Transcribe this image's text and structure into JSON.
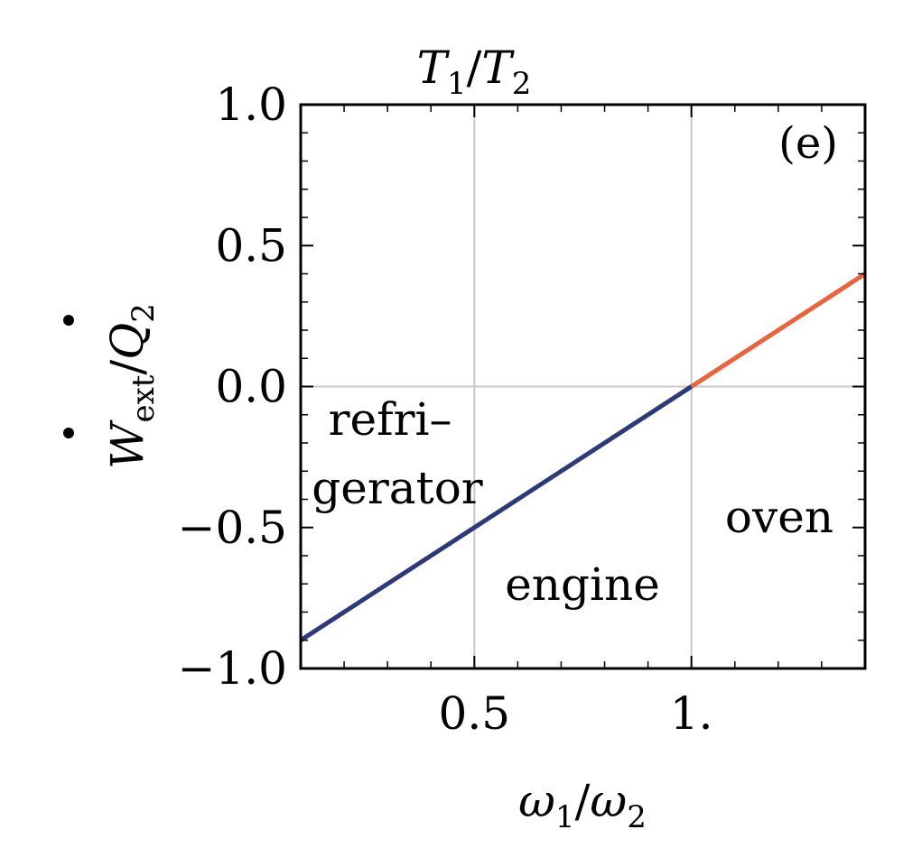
{
  "chart_data": {
    "type": "line",
    "panel_label": "(e)",
    "top_label": {
      "main": "T",
      "sub1": "1",
      "sep": "/",
      "main2": "T",
      "sub2": "2"
    },
    "xlabel": {
      "main": "ω",
      "sub1": "1",
      "sep": "/",
      "main2": "ω",
      "sub2": "2"
    },
    "ylabel": {
      "main": "W",
      "sub1": "ext",
      "sep": "/",
      "main2": "Q",
      "sub2": "2"
    },
    "xlim": [
      0.1,
      1.4
    ],
    "ylim": [
      -1.0,
      1.0
    ],
    "x_ticks": [
      {
        "value": 0.5,
        "label": "0.5"
      },
      {
        "value": 1.0,
        "label": "1."
      }
    ],
    "y_ticks": [
      {
        "value": 1.0,
        "label": "1.0"
      },
      {
        "value": 0.5,
        "label": "0.5"
      },
      {
        "value": 0.0,
        "label": "0.0"
      },
      {
        "value": -0.5,
        "label": "−0.5"
      },
      {
        "value": -1.0,
        "label": "−1.0"
      }
    ],
    "grid": true,
    "series": [
      {
        "color": "#2e3a78",
        "x": [
          0.1,
          1.0
        ],
        "y": [
          -0.9,
          0.0
        ]
      },
      {
        "color": "#e8643c",
        "x": [
          1.0,
          1.4
        ],
        "y": [
          0.0,
          0.4
        ]
      }
    ],
    "regions": [
      {
        "lines": [
          "refri–",
          "gerator"
        ]
      },
      {
        "lines": [
          "engine"
        ]
      },
      {
        "lines": [
          "oven"
        ]
      }
    ]
  }
}
